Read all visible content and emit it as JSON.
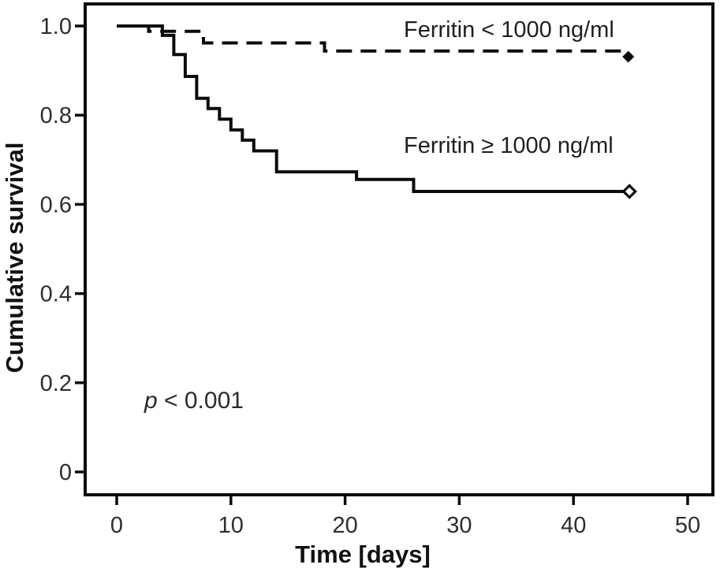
{
  "figure": {
    "p_italic": "p",
    "p_rest": " < 0.001",
    "p_value_label": "p < 0.001"
  },
  "chart_data": {
    "type": "line",
    "subtype": "kaplan-meier-step",
    "title": "",
    "xlabel": "Time [days]",
    "ylabel": "Cumulative survival",
    "xlim": [
      -2.8,
      52.2
    ],
    "ylim": [
      -0.05,
      1.05
    ],
    "x_ticks": [
      0,
      10,
      20,
      30,
      40,
      50
    ],
    "x_tick_labels": [
      "0",
      "10",
      "20",
      "30",
      "40",
      "50"
    ],
    "y_ticks": [
      0,
      0.2,
      0.4,
      0.6,
      0.8,
      1.0
    ],
    "y_tick_labels": [
      "0",
      "0.2",
      "0.4",
      "0.6",
      "0.8",
      "1.0"
    ],
    "grid": false,
    "legend_position": "inline-annotations",
    "annotation": "p < 0.001",
    "line_color": "#0b0b0b",
    "series": [
      {
        "name": "Ferritin < 1000 ng/ml",
        "line_style": "dashed",
        "marker": "filled-diamond",
        "color": "#0b0b0b",
        "points": [
          [
            0,
            1.0
          ],
          [
            2.8,
            1.0
          ],
          [
            2.8,
            0.988
          ],
          [
            7.6,
            0.988
          ],
          [
            7.6,
            0.962
          ],
          [
            18.2,
            0.962
          ],
          [
            18.2,
            0.944
          ],
          [
            44.5,
            0.944
          ]
        ],
        "end_marker_at": [
          44.8,
          0.931
        ]
      },
      {
        "name": "Ferritin ≥ 1000 ng/ml",
        "line_style": "solid",
        "marker": "open-diamond",
        "color": "#0b0b0b",
        "points": [
          [
            0,
            1.0
          ],
          [
            4,
            1.0
          ],
          [
            4,
            0.979
          ],
          [
            5,
            0.979
          ],
          [
            5,
            0.936
          ],
          [
            6,
            0.936
          ],
          [
            6,
            0.887
          ],
          [
            7,
            0.887
          ],
          [
            7,
            0.838
          ],
          [
            8,
            0.838
          ],
          [
            8,
            0.815
          ],
          [
            9,
            0.815
          ],
          [
            9,
            0.791
          ],
          [
            10,
            0.791
          ],
          [
            10,
            0.767
          ],
          [
            11,
            0.767
          ],
          [
            11,
            0.744
          ],
          [
            12,
            0.744
          ],
          [
            12,
            0.72
          ],
          [
            14,
            0.72
          ],
          [
            14,
            0.673
          ],
          [
            21,
            0.673
          ],
          [
            21,
            0.656
          ],
          [
            26,
            0.656
          ],
          [
            26,
            0.629
          ],
          [
            44.5,
            0.629
          ]
        ],
        "end_marker_at": [
          44.9,
          0.629
        ]
      }
    ]
  }
}
